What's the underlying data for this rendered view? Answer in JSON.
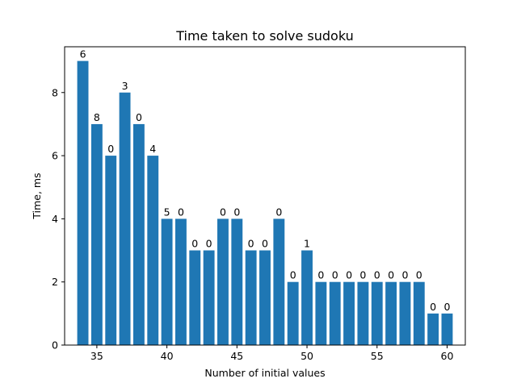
{
  "chart_data": {
    "type": "bar",
    "title": "Time taken to solve sudoku",
    "xlabel": "Number of initial values",
    "ylabel": "Time, ms",
    "x": [
      34,
      35,
      36,
      37,
      38,
      39,
      40,
      41,
      42,
      43,
      44,
      45,
      46,
      47,
      48,
      49,
      50,
      51,
      52,
      53,
      54,
      55,
      56,
      57,
      58,
      59,
      60
    ],
    "values": [
      9,
      7,
      6,
      8,
      7,
      6,
      4,
      4,
      3,
      3,
      4,
      4,
      3,
      3,
      4,
      2,
      3,
      2,
      2,
      2,
      2,
      2,
      2,
      2,
      2,
      1,
      1
    ],
    "bar_labels": [
      "6",
      "8",
      "0",
      "3",
      "0",
      "4",
      "5",
      "0",
      "0",
      "0",
      "0",
      "0",
      "0",
      "0",
      "0",
      "0",
      "1",
      "0",
      "0",
      "0",
      "0",
      "0",
      "0",
      "0",
      "0",
      "0",
      "0"
    ],
    "xticks": [
      35,
      40,
      45,
      50,
      55,
      60
    ],
    "yticks": [
      0,
      2,
      4,
      6,
      8
    ],
    "xlim": [
      32.7,
      61.3
    ],
    "ylim": [
      0,
      9.45
    ],
    "bar_color": "#1f77b4",
    "grid": false,
    "legend": "none"
  }
}
